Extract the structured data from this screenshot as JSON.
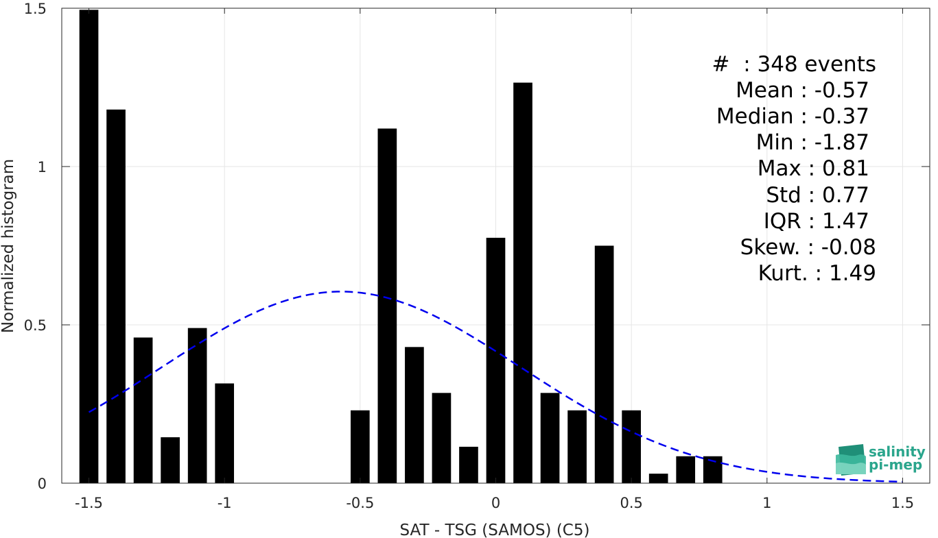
{
  "chart_data": {
    "type": "bar",
    "xlabel": "SAT - TSG (SAMOS) (C5)",
    "ylabel": "Normalized histogram",
    "xlim": [
      -1.6,
      1.6
    ],
    "ylim": [
      0,
      1.5
    ],
    "xticks": [
      -1.5,
      -1,
      -0.5,
      0,
      0.5,
      1,
      1.5
    ],
    "xtick_labels": [
      "-1.5",
      "-1",
      "-0.5",
      "0",
      "0.5",
      "1",
      "1.5"
    ],
    "yticks": [
      0,
      0.5,
      1,
      1.5
    ],
    "ytick_labels": [
      "0",
      "0.5",
      "1",
      "1.5"
    ],
    "grid": true,
    "bar_color": "#000000",
    "bar_width": 0.07,
    "bars": [
      {
        "x": -1.5,
        "y": 1.495
      },
      {
        "x": -1.4,
        "y": 1.18
      },
      {
        "x": -1.3,
        "y": 0.46
      },
      {
        "x": -1.2,
        "y": 0.145
      },
      {
        "x": -1.1,
        "y": 0.49
      },
      {
        "x": -1.0,
        "y": 0.315
      },
      {
        "x": -0.5,
        "y": 0.23
      },
      {
        "x": -0.4,
        "y": 1.12
      },
      {
        "x": -0.3,
        "y": 0.43
      },
      {
        "x": -0.2,
        "y": 0.285
      },
      {
        "x": -0.1,
        "y": 0.115
      },
      {
        "x": 0.0,
        "y": 0.775
      },
      {
        "x": 0.1,
        "y": 1.265
      },
      {
        "x": 0.2,
        "y": 0.285
      },
      {
        "x": 0.3,
        "y": 0.23
      },
      {
        "x": 0.4,
        "y": 0.75
      },
      {
        "x": 0.5,
        "y": 0.23
      },
      {
        "x": 0.6,
        "y": 0.03
      },
      {
        "x": 0.7,
        "y": 0.085
      },
      {
        "x": 0.8,
        "y": 0.085
      }
    ],
    "gaussian_fit": {
      "mean": -0.57,
      "std": 0.66,
      "peak": 0.605,
      "x_range": [
        -1.5,
        1.5
      ],
      "color": "#0000ee",
      "style": "dashed"
    },
    "stats": {
      "count": "#  : 348 events",
      "mean": "Mean : -0.57",
      "median": "Median : -0.37",
      "min": "Min : -1.87",
      "max": "Max : 0.81",
      "std": "Std : 0.77",
      "iqr": "IQR : 1.47",
      "skew": "Skew. : -0.08",
      "kurt": "Kurt. : 1.49"
    }
  },
  "logo": {
    "line1": "salinity",
    "line2": "pi-mep",
    "color": "#2aa58c"
  }
}
